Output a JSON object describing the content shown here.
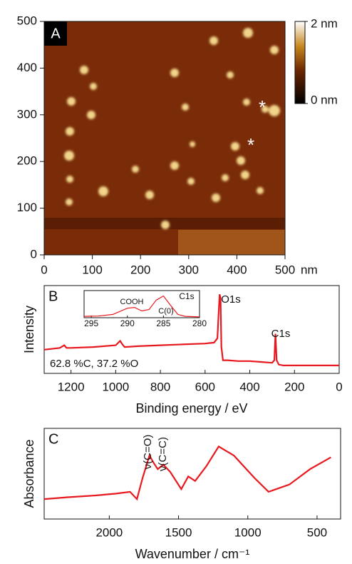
{
  "chart_data": [
    {
      "type": "image",
      "title": "A",
      "x_label": "nm",
      "xlim": [
        0,
        500
      ],
      "ylim": [
        0,
        500
      ],
      "xticks": [
        0,
        100,
        200,
        300,
        400,
        500
      ],
      "yticks": [
        0,
        100,
        200,
        300,
        400,
        500
      ],
      "colorbar": {
        "clim": [
          0,
          2
        ],
        "ticks": [
          {
            "value": 2,
            "label": "2 nm"
          },
          {
            "value": 0,
            "label": "0 nm"
          }
        ]
      },
      "annotations": [
        "*",
        "*"
      ]
    },
    {
      "type": "line",
      "title": "B",
      "xlabel": "Binding energy / eV",
      "ylabel": "Intensity",
      "xlim": [
        1320,
        0
      ],
      "ylim": [
        0,
        1
      ],
      "xticks": [
        1200,
        1000,
        800,
        600,
        400,
        200,
        0
      ],
      "x": [
        1320,
        1250,
        1230,
        1220,
        1200,
        1100,
        1000,
        980,
        970,
        960,
        900,
        800,
        700,
        600,
        560,
        545,
        535,
        531,
        527,
        520,
        500,
        450,
        400,
        350,
        300,
        290,
        285,
        280,
        270,
        250,
        200,
        100,
        0
      ],
      "series": [
        {
          "color": "#e8191e",
          "values": [
            0.27,
            0.29,
            0.32,
            0.29,
            0.29,
            0.3,
            0.32,
            0.37,
            0.33,
            0.3,
            0.31,
            0.32,
            0.33,
            0.34,
            0.35,
            0.4,
            0.9,
            0.86,
            0.3,
            0.15,
            0.15,
            0.14,
            0.14,
            0.13,
            0.12,
            0.15,
            0.45,
            0.15,
            0.1,
            0.09,
            0.09,
            0.09,
            0.09
          ]
        }
      ],
      "annotations": [
        "O1s",
        "C1s",
        "62.8 %C, 37.2 %O"
      ]
    },
    {
      "type": "line",
      "title": "C",
      "xlabel": "Wavenumber / cm⁻¹",
      "ylabel": "Absorbance",
      "xlim": [
        2470,
        330
      ],
      "ylim": [
        0,
        1
      ],
      "xticks": [
        2000,
        1500,
        1000,
        500
      ],
      "x": [
        2470,
        2300,
        2100,
        1950,
        1850,
        1800,
        1760,
        1710,
        1680,
        1650,
        1610,
        1560,
        1480,
        1430,
        1380,
        1300,
        1210,
        1100,
        950,
        850,
        700,
        550,
        400
      ],
      "series": [
        {
          "color": "#e8191e",
          "values": [
            0.22,
            0.24,
            0.26,
            0.28,
            0.3,
            0.22,
            0.45,
            0.7,
            0.62,
            0.55,
            0.6,
            0.52,
            0.33,
            0.47,
            0.42,
            0.58,
            0.8,
            0.7,
            0.45,
            0.3,
            0.38,
            0.55,
            0.68
          ]
        }
      ],
      "annotations": [
        "ν(C=O)",
        "ν(C=C)"
      ]
    },
    {
      "type": "line",
      "xlim": [
        296,
        280
      ],
      "ylim": [
        0,
        1
      ],
      "xticks": [
        295,
        290,
        285,
        280
      ],
      "x": [
        296,
        294,
        292,
        290,
        289,
        288,
        287,
        286,
        285,
        284,
        283,
        282,
        280
      ],
      "series": [
        {
          "color": "#e8191e",
          "values": [
            0.05,
            0.06,
            0.12,
            0.35,
            0.38,
            0.25,
            0.3,
            0.65,
            0.8,
            0.45,
            0.12,
            0.05,
            0.03
          ]
        }
      ],
      "annotations": [
        "C1s",
        "COOH",
        "C(0)"
      ]
    }
  ]
}
